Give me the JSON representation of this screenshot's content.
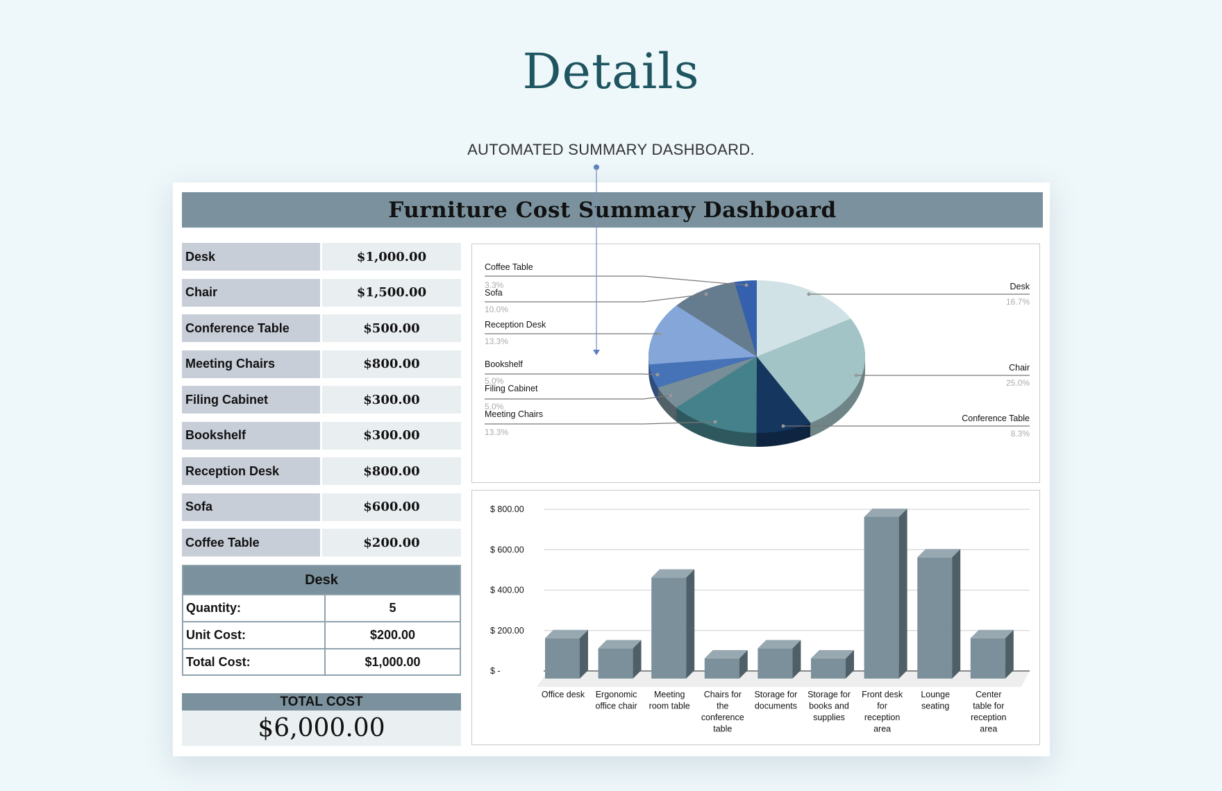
{
  "page": {
    "title": "Details",
    "subtitle": "AUTOMATED SUMMARY DASHBOARD."
  },
  "dashboard": {
    "title": "Furniture Cost Summary Dashboard",
    "items": [
      {
        "label": "Desk",
        "value": "$1,000.00"
      },
      {
        "label": "Chair",
        "value": "$1,500.00"
      },
      {
        "label": "Conference Table",
        "value": "$500.00"
      },
      {
        "label": "Meeting Chairs",
        "value": "$800.00"
      },
      {
        "label": "Filing Cabinet",
        "value": "$300.00"
      },
      {
        "label": "Bookshelf",
        "value": "$300.00"
      },
      {
        "label": "Reception Desk",
        "value": "$800.00"
      },
      {
        "label": "Sofa",
        "value": "$600.00"
      },
      {
        "label": "Coffee Table",
        "value": "$200.00"
      }
    ],
    "detail": {
      "selected": "Desk",
      "quantity_label": "Quantity:",
      "quantity": "5",
      "unit_cost_label": "Unit Cost:",
      "unit_cost": "$200.00",
      "total_cost_label": "Total Cost:",
      "total_cost": "$1,000.00"
    },
    "total": {
      "label": "TOTAL COST",
      "value": "$6,000.00"
    }
  },
  "chart_data": [
    {
      "type": "pie",
      "style": "3d",
      "slices": [
        {
          "label": "Desk",
          "value": 16.7,
          "pct": "16.7%",
          "color": "#d0e2e6"
        },
        {
          "label": "Chair",
          "value": 25.0,
          "pct": "25.0%",
          "color": "#a3c4c7"
        },
        {
          "label": "Conference Table",
          "value": 8.3,
          "pct": "8.3%",
          "color": "#14365f"
        },
        {
          "label": "Meeting Chairs",
          "value": 13.3,
          "pct": "13.3%",
          "color": "#45818a"
        },
        {
          "label": "Filing Cabinet",
          "value": 5.0,
          "pct": "5.0%",
          "color": "#788f99"
        },
        {
          "label": "Bookshelf",
          "value": 5.0,
          "pct": "5.0%",
          "color": "#4673b8"
        },
        {
          "label": "Reception Desk",
          "value": 13.3,
          "pct": "13.3%",
          "color": "#84a6d9"
        },
        {
          "label": "Sofa",
          "value": 10.0,
          "pct": "10.0%",
          "color": "#657c8f"
        },
        {
          "label": "Coffee Table",
          "value": 3.3,
          "pct": "3.3%",
          "color": "#3460ad"
        }
      ]
    },
    {
      "type": "bar",
      "style": "3d",
      "categories": [
        "Office desk",
        "Ergonomic office chair",
        "Meeting room table",
        "Chairs for the conference table",
        "Storage for documents",
        "Storage for books and supplies",
        "Front desk for reception area",
        "Lounge seating",
        "Center table for reception area"
      ],
      "category_lines": [
        [
          "Office desk"
        ],
        [
          "Ergonomic",
          "office chair"
        ],
        [
          "Meeting",
          "room table"
        ],
        [
          "Chairs for",
          "the",
          "conference",
          "table"
        ],
        [
          "Storage for",
          "documents"
        ],
        [
          "Storage for",
          "books and",
          "supplies"
        ],
        [
          "Front desk",
          "for",
          "reception",
          "area"
        ],
        [
          "Lounge",
          "seating"
        ],
        [
          "Center",
          "table for",
          "reception",
          "area"
        ]
      ],
      "values": [
        200,
        150,
        500,
        100,
        150,
        100,
        800,
        600,
        200
      ],
      "ylim": [
        0,
        800
      ],
      "yticks": [
        0,
        200,
        400,
        600,
        800
      ],
      "ytick_labels": [
        "$ -",
        "$ 200.00",
        "$ 400.00",
        "$ 600.00",
        "$ 800.00"
      ],
      "grid": true,
      "color": "#7b909b"
    }
  ]
}
